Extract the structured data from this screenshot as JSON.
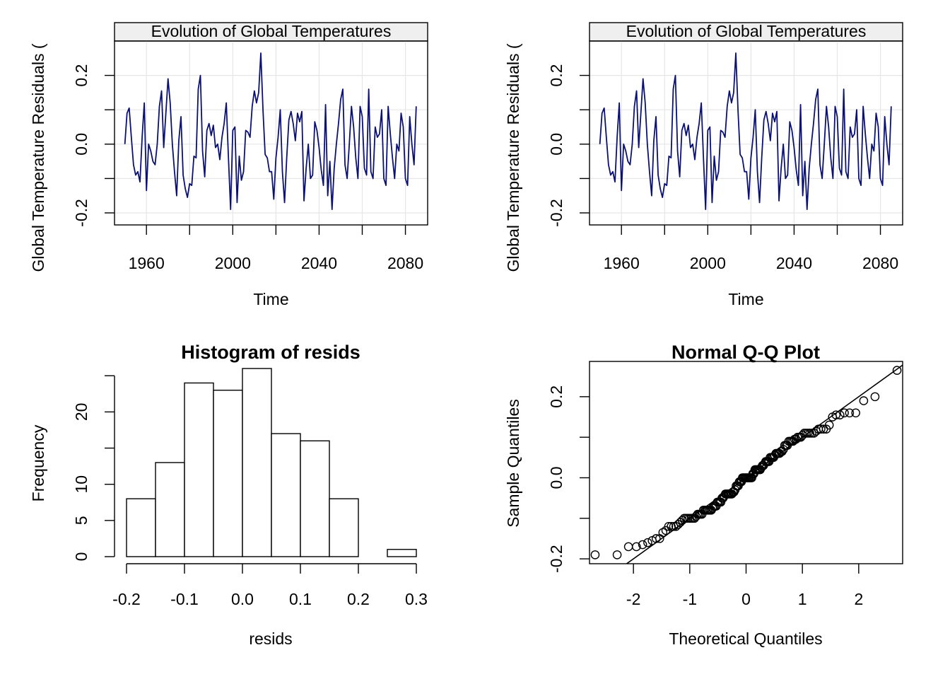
{
  "colors": {
    "line": "#0a1172",
    "strip": "#efefef",
    "grid": "#e6e6e6",
    "axis": "#000000",
    "background": "#ffffff"
  },
  "chart_data": [
    {
      "id": "ts1",
      "type": "line",
      "strip_title": "Evolution of Global Temperatures",
      "xlabel": "Time",
      "ylabel": "Global Temperature Residuals (",
      "xlim": [
        1945.2,
        2090.3
      ],
      "ylim": [
        -0.235,
        0.3
      ],
      "xticks": [
        1960,
        1980,
        2000,
        2020,
        2040,
        2060,
        2080
      ],
      "xtick_labels": [
        "1960",
        "",
        "2000",
        "",
        "2040",
        "",
        "2080"
      ],
      "yticks": [
        -0.2,
        -0.1,
        0.0,
        0.1,
        0.2
      ],
      "ytick_labels": [
        "-0.2",
        "",
        "0.0",
        "",
        "0.2"
      ],
      "grid": true,
      "x_start": 1950,
      "x_step": 1,
      "values": [
        0.0,
        0.09,
        0.105,
        0.02,
        -0.06,
        -0.09,
        -0.08,
        -0.11,
        0.02,
        0.12,
        -0.135,
        0.0,
        -0.02,
        -0.05,
        -0.06,
        0.0,
        0.11,
        0.155,
        -0.01,
        0.09,
        0.19,
        0.12,
        0.0,
        -0.08,
        -0.15,
        0.01,
        0.08,
        -0.09,
        -0.13,
        -0.155,
        -0.115,
        -0.12,
        -0.035,
        -0.04,
        0.16,
        0.2,
        -0.02,
        -0.095,
        0.04,
        0.06,
        0.025,
        0.055,
        -0.01,
        0.0,
        -0.045,
        0.02,
        0.06,
        0.12,
        -0.04,
        -0.19,
        0.04,
        0.05,
        -0.17,
        -0.035,
        -0.105,
        -0.08,
        0.04,
        0.035,
        0.02,
        0.11,
        0.155,
        0.12,
        0.15,
        0.265,
        0.1,
        -0.03,
        -0.04,
        -0.08,
        -0.08,
        -0.16,
        -0.04,
        0.02,
        0.1,
        -0.08,
        -0.17,
        -0.04,
        0.07,
        0.095,
        0.06,
        0.01,
        0.09,
        0.065,
        0.095,
        -0.165,
        -0.07,
        0.0,
        -0.1,
        -0.09,
        0.065,
        0.04,
        -0.01,
        -0.075,
        -0.12,
        0.115,
        -0.15,
        -0.05,
        -0.19,
        -0.07,
        0.0,
        0.06,
        0.13,
        0.16,
        -0.06,
        -0.1,
        0.0,
        0.11,
        0.05,
        -0.04,
        -0.1,
        0.11,
        0.08,
        -0.07,
        -0.09,
        0.16,
        -0.08,
        -0.1,
        0.05,
        0.02,
        0.03,
        0.1,
        -0.1,
        -0.12,
        0.11,
        0.03,
        -0.04,
        -0.1,
        0.0,
        -0.02,
        0.09,
        0.05,
        -0.1,
        -0.12,
        0.08,
        0.0,
        -0.06,
        0.11
      ]
    },
    {
      "id": "ts2",
      "type": "line",
      "strip_title": "Evolution of Global Temperatures",
      "xlabel": "Time",
      "ylabel": "Global Temperature Residuals (",
      "xlim": [
        1945.2,
        2090.3
      ],
      "ylim": [
        -0.235,
        0.3
      ],
      "xticks": [
        1960,
        1980,
        2000,
        2020,
        2040,
        2060,
        2080
      ],
      "xtick_labels": [
        "1960",
        "",
        "2000",
        "",
        "2040",
        "",
        "2080"
      ],
      "yticks": [
        -0.2,
        -0.1,
        0.0,
        0.1,
        0.2
      ],
      "ytick_labels": [
        "-0.2",
        "",
        "0.0",
        "",
        "0.2"
      ],
      "grid": true,
      "x_start": 1950,
      "x_step": 1,
      "values": [
        0.0,
        0.09,
        0.105,
        0.02,
        -0.06,
        -0.09,
        -0.08,
        -0.11,
        0.02,
        0.12,
        -0.135,
        0.0,
        -0.02,
        -0.05,
        -0.06,
        0.0,
        0.11,
        0.155,
        -0.01,
        0.09,
        0.19,
        0.12,
        0.0,
        -0.08,
        -0.15,
        0.01,
        0.08,
        -0.09,
        -0.13,
        -0.155,
        -0.115,
        -0.12,
        -0.035,
        -0.04,
        0.16,
        0.2,
        -0.02,
        -0.095,
        0.04,
        0.06,
        0.025,
        0.055,
        -0.01,
        0.0,
        -0.045,
        0.02,
        0.06,
        0.12,
        -0.04,
        -0.19,
        0.04,
        0.05,
        -0.17,
        -0.035,
        -0.105,
        -0.08,
        0.04,
        0.035,
        0.02,
        0.11,
        0.155,
        0.12,
        0.15,
        0.265,
        0.1,
        -0.03,
        -0.04,
        -0.08,
        -0.08,
        -0.16,
        -0.04,
        0.02,
        0.1,
        -0.08,
        -0.17,
        -0.04,
        0.07,
        0.095,
        0.06,
        0.01,
        0.09,
        0.065,
        0.095,
        -0.165,
        -0.07,
        0.0,
        -0.1,
        -0.09,
        0.065,
        0.04,
        -0.01,
        -0.075,
        -0.12,
        0.115,
        -0.15,
        -0.05,
        -0.19,
        -0.07,
        0.0,
        0.06,
        0.13,
        0.16,
        -0.06,
        -0.1,
        0.0,
        0.11,
        0.05,
        -0.04,
        -0.1,
        0.11,
        0.08,
        -0.07,
        -0.09,
        0.16,
        -0.08,
        -0.1,
        0.05,
        0.02,
        0.03,
        0.1,
        -0.1,
        -0.12,
        0.11,
        0.03,
        -0.04,
        -0.1,
        0.0,
        -0.02,
        0.09,
        0.05,
        -0.1,
        -0.12,
        0.08,
        0.0,
        -0.06,
        0.11
      ]
    },
    {
      "id": "hist",
      "type": "bar",
      "title": "Histogram of resids",
      "xlabel": "resids",
      "ylabel": "Frequency",
      "bin_edges": [
        -0.2,
        -0.15,
        -0.1,
        -0.05,
        0.0,
        0.05,
        0.1,
        0.15,
        0.2,
        0.25,
        0.3
      ],
      "counts": [
        8,
        13,
        24,
        23,
        26,
        17,
        16,
        8,
        0,
        1
      ],
      "xlim": [
        -0.2,
        0.3
      ],
      "ylim": [
        0,
        26
      ],
      "xticks": [
        -0.2,
        -0.1,
        0.0,
        0.1,
        0.2,
        0.3
      ],
      "xtick_labels": [
        "-0.2",
        "-0.1",
        "0.0",
        "0.1",
        "0.2",
        "0.3"
      ],
      "yticks": [
        0,
        5,
        10,
        15,
        20,
        25
      ],
      "ytick_labels": [
        "0",
        "5",
        "10",
        "",
        "20",
        ""
      ]
    },
    {
      "id": "qq",
      "type": "scatter",
      "title": "Normal Q-Q Plot",
      "xlabel": "Theoretical Quantiles",
      "ylabel": "Sample Quantiles",
      "xlim": [
        -2.78,
        2.78
      ],
      "ylim": [
        -0.212,
        0.287
      ],
      "xticks": [
        -2,
        -1,
        0,
        1,
        2
      ],
      "xtick_labels": [
        "-2",
        "-1",
        "0",
        "1",
        "2"
      ],
      "yticks": [
        -0.2,
        -0.1,
        0.0,
        0.1,
        0.2
      ],
      "ytick_labels": [
        "-0.2",
        "",
        "0.0",
        "",
        "0.2"
      ],
      "reference_line": {
        "intercept": 0.0,
        "slope": 0.1
      },
      "n_points": 136
    }
  ]
}
